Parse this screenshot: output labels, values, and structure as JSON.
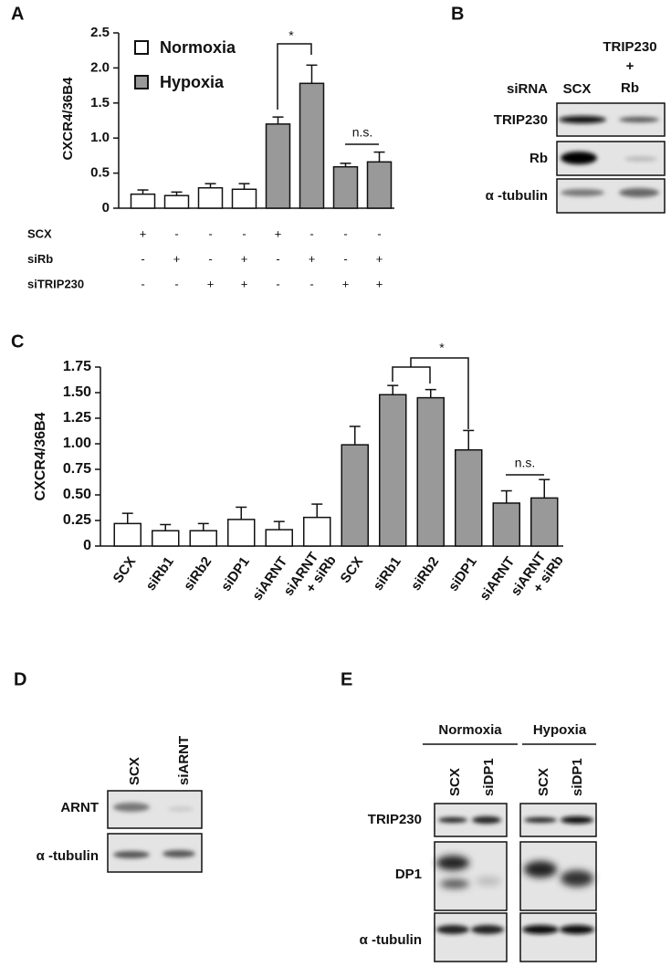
{
  "chart_data": [
    {
      "type": "bar",
      "label": "A",
      "ylabel": "CXCR4/36B4",
      "ylim": [
        0,
        2.5
      ],
      "yticks": [
        0,
        0.5,
        {
          "value": 1,
          "label": "1.0"
        },
        1.5,
        {
          "value": 2,
          "label": "2.0"
        },
        2.5
      ],
      "series": [
        {
          "name": "Normoxia",
          "color": "#ffffff",
          "values": [
            0.2,
            0.18,
            0.29,
            0.27,
            null,
            null,
            null,
            null
          ],
          "errors": [
            0.06,
            0.05,
            0.06,
            0.08,
            null,
            null,
            null,
            null
          ]
        },
        {
          "name": "Hypoxia",
          "color": "#999999",
          "values": [
            null,
            null,
            null,
            null,
            1.2,
            1.78,
            0.59,
            0.66
          ],
          "errors": [
            null,
            null,
            null,
            null,
            0.1,
            0.26,
            0.05,
            0.14
          ]
        }
      ],
      "conditions": [
        {
          "name": "SCX",
          "marks": [
            "+",
            "-",
            "-",
            "-",
            "+",
            "-",
            "-",
            "-"
          ]
        },
        {
          "name": "siRb",
          "marks": [
            "-",
            "+",
            "-",
            "+",
            "-",
            "+",
            "-",
            "+"
          ]
        },
        {
          "name": "siTRIP230",
          "marks": [
            "-",
            "-",
            "+",
            "+",
            "-",
            "-",
            "+",
            "+"
          ]
        }
      ],
      "annotations": [
        "*",
        "n.s."
      ]
    },
    {
      "type": "bar",
      "label": "C",
      "ylabel": "CXCR4/36B4",
      "ylim": [
        0,
        1.75
      ],
      "yticks": [
        0,
        0.25,
        {
          "value": 0.5,
          "label": "0.50"
        },
        0.75,
        {
          "value": 1,
          "label": "1.00"
        },
        1.25,
        {
          "value": 1.5,
          "label": "1.50"
        },
        1.75
      ],
      "categories": [
        "SCX",
        "siRb1",
        "siRb2",
        "siDP1",
        "siARNT",
        [
          "siARNT",
          "+ siRb"
        ],
        "SCX",
        "siRb1",
        "siRb2",
        "siDP1",
        "siARNT",
        [
          "siARNT",
          "+ siRb"
        ]
      ],
      "series": [
        {
          "color": "#ffffff",
          "values": [
            0.22,
            0.15,
            0.15,
            0.26,
            0.16,
            0.28,
            null,
            null,
            null,
            null,
            null,
            null
          ],
          "errors": [
            0.1,
            0.06,
            0.07,
            0.12,
            0.08,
            0.13,
            null,
            null,
            null,
            null,
            null,
            null
          ]
        },
        {
          "color": "#999999",
          "values": [
            null,
            null,
            null,
            null,
            null,
            null,
            0.99,
            1.48,
            1.45,
            0.94,
            0.42,
            0.47
          ],
          "errors": [
            null,
            null,
            null,
            null,
            null,
            null,
            0.18,
            0.09,
            0.08,
            0.19,
            0.12,
            0.18
          ]
        }
      ],
      "annotations": [
        "*",
        "n.s."
      ]
    }
  ],
  "blots": {
    "B": {
      "label": "B",
      "row_header": "siRNA",
      "columns": [
        "SCX",
        [
          "TRIP230",
          "+",
          "Rb"
        ]
      ],
      "rows": [
        "TRIP230",
        "Rb",
        "α -tubulin"
      ]
    },
    "D": {
      "label": "D",
      "columns": [
        "SCX",
        "siARNT"
      ],
      "rows": [
        "ARNT",
        "α -tubulin"
      ]
    },
    "E": {
      "label": "E",
      "groups": [
        {
          "name": "Normoxia",
          "columns": [
            "SCX",
            "siDP1"
          ]
        },
        {
          "name": "Hypoxia",
          "columns": [
            "SCX",
            "siDP1"
          ]
        }
      ],
      "rows": [
        "TRIP230",
        "DP1",
        "α -tubulin"
      ]
    }
  }
}
